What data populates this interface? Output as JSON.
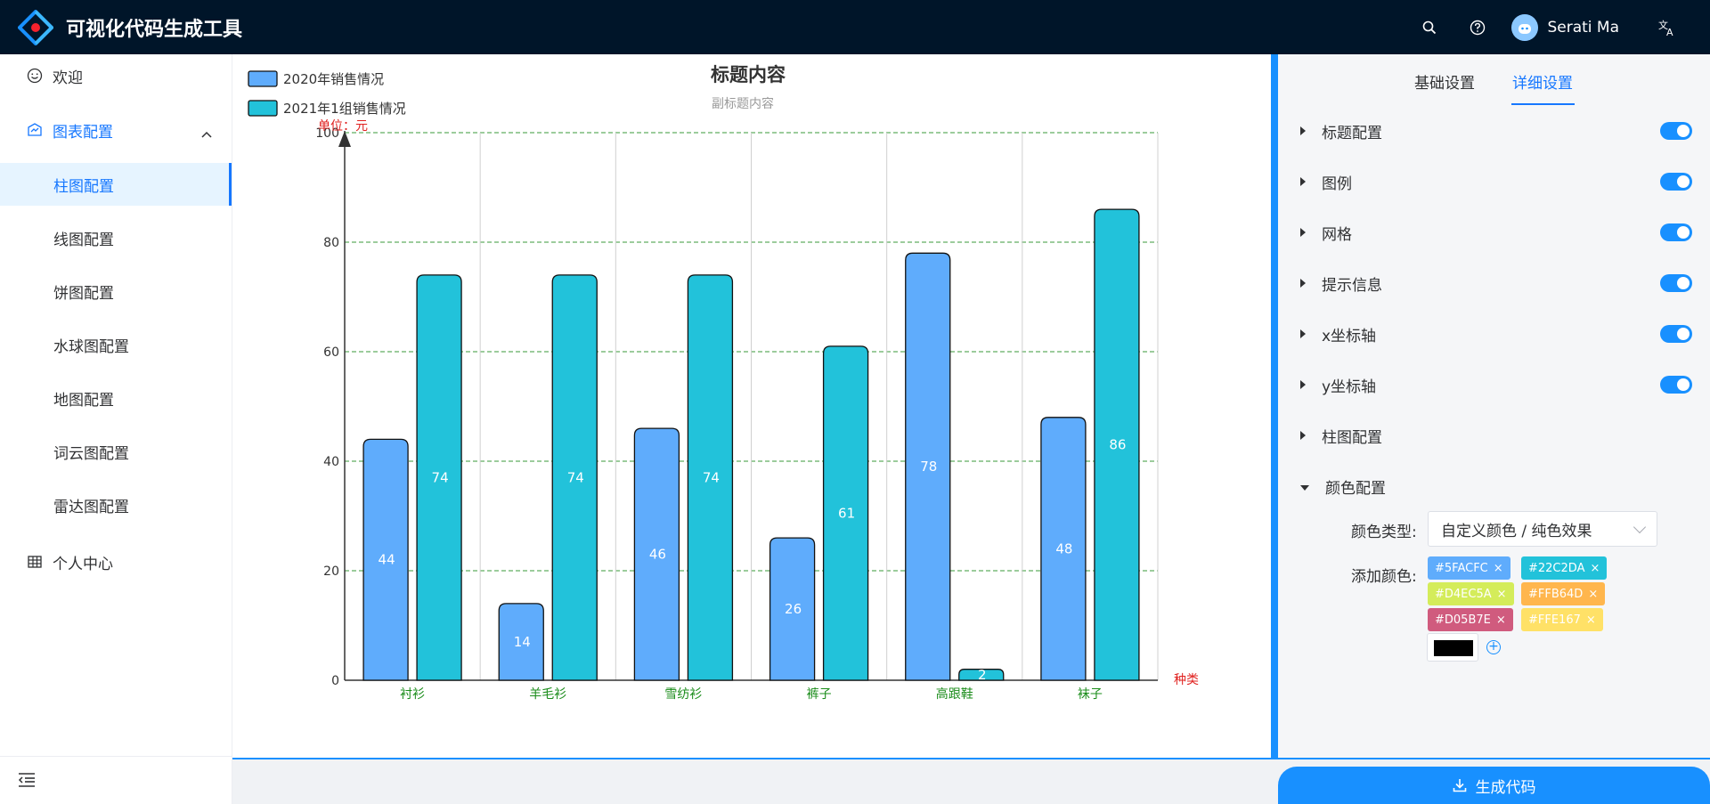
{
  "app": {
    "title": "可视化代码生成工具"
  },
  "header": {
    "user_name": "Serati Ma"
  },
  "sidebar": {
    "items": [
      {
        "label": "欢迎",
        "icon": "smile-icon"
      },
      {
        "label": "图表配置",
        "icon": "chart-icon"
      },
      {
        "label": "个人中心",
        "icon": "table-icon"
      }
    ],
    "submenu": [
      "柱图配置",
      "线图配置",
      "饼图配置",
      "水球图配置",
      "地图配置",
      "词云图配置",
      "雷达图配置"
    ],
    "active_submenu": "柱图配置"
  },
  "panel": {
    "tabs": [
      "基础设置",
      "详细设置"
    ],
    "active_tab": "详细设置",
    "sections": [
      {
        "label": "标题配置",
        "enabled": true
      },
      {
        "label": "图例",
        "enabled": true
      },
      {
        "label": "网格",
        "enabled": true
      },
      {
        "label": "提示信息",
        "enabled": true
      },
      {
        "label": "x坐标轴",
        "enabled": true
      },
      {
        "label": "y坐标轴",
        "enabled": true
      },
      {
        "label": "柱图配置"
      },
      {
        "label": "颜色配置",
        "expanded": true
      }
    ],
    "color_type_label": "颜色类型:",
    "color_type_value": "自定义颜色 / 纯色效果",
    "add_color_label": "添加颜色:",
    "color_tags": [
      {
        "label": "#5FACFC",
        "color": "#5FACFC"
      },
      {
        "label": "#22C2DA",
        "color": "#22C2DA"
      },
      {
        "label": "#D4EC5A",
        "color": "#D4EC5A"
      },
      {
        "label": "#FFB64D",
        "color": "#FFB64D"
      },
      {
        "label": "#D05B7E",
        "color": "#D05B7E"
      },
      {
        "label": "#FFE167",
        "color": "#FFE167"
      }
    ],
    "picker_color": "#000000"
  },
  "generate_button": "生成代码",
  "chart_data": {
    "type": "bar",
    "title": "标题内容",
    "subtitle": "副标题内容",
    "y_unit": "单位：元",
    "x_unit": "种类",
    "categories": [
      "衬衫",
      "羊毛衫",
      "雪纺衫",
      "裤子",
      "高跟鞋",
      "袜子"
    ],
    "series": [
      {
        "name": "2020年销售情况",
        "color": "#5FACFC",
        "values": [
          44,
          14,
          46,
          26,
          78,
          48
        ]
      },
      {
        "name": "2021年1组销售情况",
        "color": "#22C2DA",
        "values": [
          74,
          74,
          74,
          61,
          2,
          86
        ]
      }
    ],
    "ylim": [
      0,
      100
    ],
    "yticks": [
      0,
      20,
      40,
      60,
      80,
      100
    ],
    "grid": true,
    "legend_position": "top-left"
  }
}
